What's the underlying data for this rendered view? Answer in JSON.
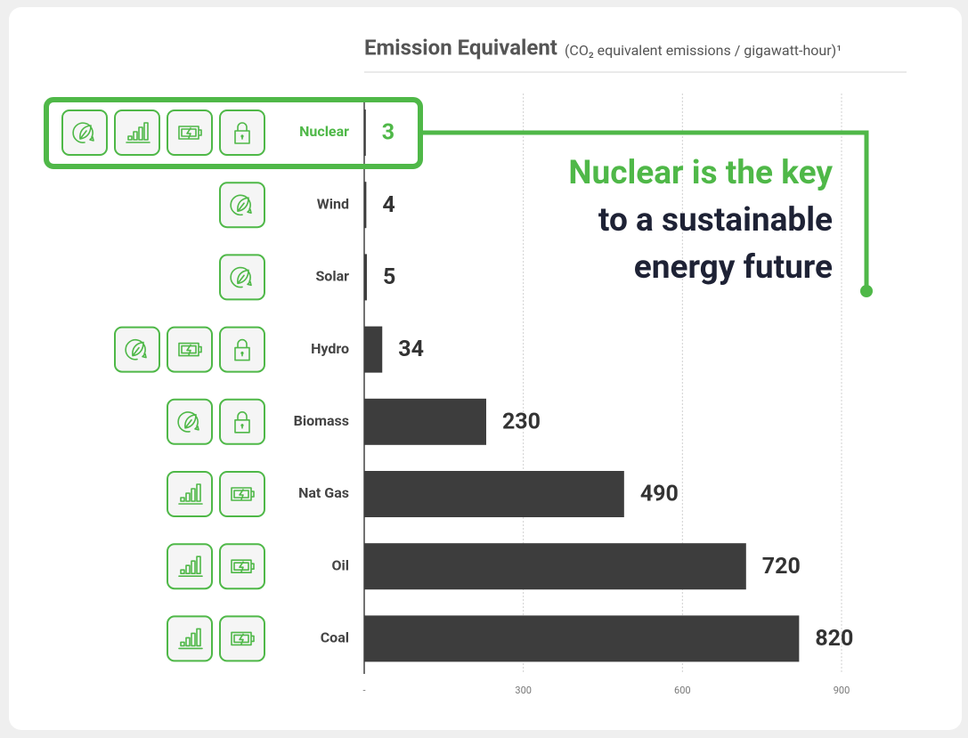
{
  "chart_data": {
    "type": "hbar",
    "title": "Emission Equivalent",
    "subtitle": "(CO₂ equivalent emissions / gigawatt-hour)¹",
    "categories": [
      "Nuclear",
      "Wind",
      "Solar",
      "Hydro",
      "Biomass",
      "Nat Gas",
      "Oil",
      "Coal"
    ],
    "values": [
      3,
      4,
      5,
      34,
      230,
      490,
      720,
      820
    ],
    "color": "#3d3d3d",
    "highlight": 0,
    "highlight_color": "#4fb848",
    "xlim": [
      0,
      900
    ],
    "xticks": [
      {
        "value": 0,
        "label": "-"
      },
      300,
      600,
      900
    ],
    "grid": true,
    "annotation": [
      "Nuclear is the key",
      "to a sustainable",
      "energy future"
    ]
  }
}
